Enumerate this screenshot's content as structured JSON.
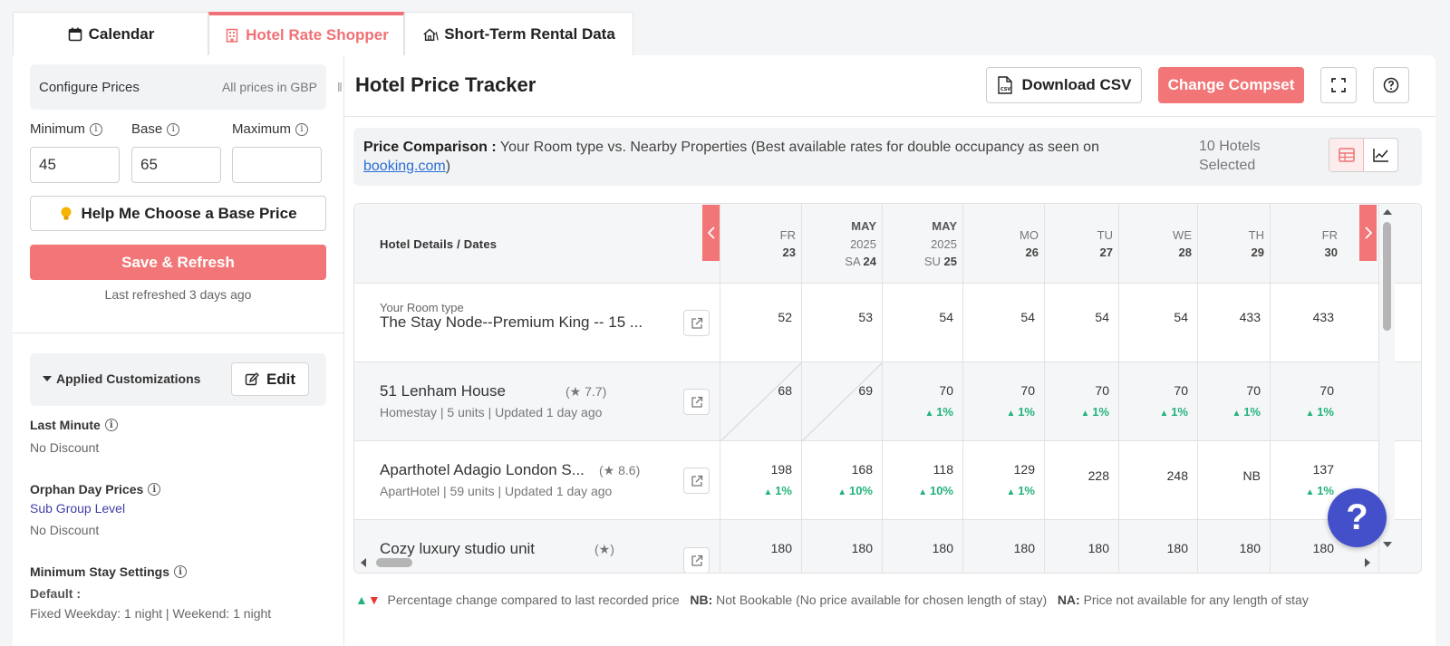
{
  "tabs": [
    {
      "label": "Calendar",
      "icon": "calendar-icon"
    },
    {
      "label": "Hotel Rate Shopper",
      "icon": "hotel-icon",
      "active": true
    },
    {
      "label": "Short-Term Rental Data",
      "icon": "house-icon"
    }
  ],
  "config": {
    "title": "Configure Prices",
    "note": "All prices in GBP",
    "minimum_label": "Minimum",
    "base_label": "Base",
    "maximum_label": "Maximum",
    "minimum_value": "45",
    "base_value": "65",
    "maximum_value": "",
    "help_button": "Help Me Choose a Base Price",
    "save_button": "Save & Refresh",
    "last_refreshed": "Last refreshed 3 days ago"
  },
  "customizations": {
    "title": "Applied Customizations",
    "edit_button": "Edit",
    "last_minute_label": "Last Minute",
    "last_minute_value": "No Discount",
    "orphan_label": "Orphan Day Prices",
    "orphan_link": "Sub Group Level",
    "orphan_value": "No Discount",
    "min_stay_label": "Minimum Stay Settings",
    "min_stay_default": "Default :",
    "min_stay_value": "Fixed Weekday: 1 night | Weekend: 1 night"
  },
  "tracker": {
    "title": "Hotel Price Tracker",
    "download_button": "Download CSV",
    "change_compset_button": "Change Compset",
    "comparison_label": "Price Comparison :",
    "comparison_text": " Your Room type vs. Nearby Properties (Best available rates for double occupancy as seen on ",
    "comparison_link": "booking.com",
    "comparison_end": ")",
    "hotels_selected": "10 Hotels Selected",
    "table_header": "Hotel Details / Dates"
  },
  "dates": [
    {
      "top": "",
      "mid": "",
      "day": "FR",
      "num": "23"
    },
    {
      "top": "MAY",
      "mid": "2025",
      "day": "SA",
      "num": "24"
    },
    {
      "top": "MAY",
      "mid": "2025",
      "day": "SU",
      "num": "25"
    },
    {
      "top": "",
      "mid": "",
      "day": "MO",
      "num": "26"
    },
    {
      "top": "",
      "mid": "",
      "day": "TU",
      "num": "27"
    },
    {
      "top": "",
      "mid": "",
      "day": "WE",
      "num": "28"
    },
    {
      "top": "",
      "mid": "",
      "day": "TH",
      "num": "29"
    },
    {
      "top": "",
      "mid": "",
      "day": "FR",
      "num": "30"
    }
  ],
  "rows": [
    {
      "small": "Your Room type",
      "name": "The Stay Node--Premium King -- 15 ...",
      "sub": "",
      "rating": "",
      "prices": [
        "52",
        "53",
        "54",
        "54",
        "54",
        "54",
        "433",
        "433"
      ],
      "changes": [
        "",
        "",
        "",
        "",
        "",
        "",
        "",
        ""
      ]
    },
    {
      "small": "",
      "name": "51 Lenham House",
      "sub": "Homestay | 5 units | Updated 1 day ago",
      "rating": "7.7",
      "prices": [
        "68",
        "69",
        "70",
        "70",
        "70",
        "70",
        "70",
        "70"
      ],
      "changes": [
        "",
        "",
        "1%",
        "1%",
        "1%",
        "1%",
        "1%",
        "1%"
      ]
    },
    {
      "small": "",
      "name": "Aparthotel Adagio London S...",
      "sub": "ApartHotel | 59 units | Updated 1 day ago",
      "rating": "8.6",
      "prices": [
        "198",
        "168",
        "118",
        "129",
        "228",
        "248",
        "NB",
        "137"
      ],
      "changes": [
        "1%",
        "10%",
        "10%",
        "1%",
        "",
        "",
        "",
        "1%"
      ]
    },
    {
      "small": "",
      "name": "Cozy luxury studio unit",
      "sub": "",
      "rating": "",
      "prices": [
        "180",
        "180",
        "180",
        "180",
        "180",
        "180",
        "180",
        "180"
      ],
      "changes": [
        "",
        "",
        "",
        "",
        "",
        "",
        "",
        ""
      ]
    }
  ],
  "legend": {
    "pct_text": "Percentage change compared to last recorded price",
    "nb_label": "NB:",
    "nb_text": "Not Bookable (No price available for chosen length of stay)",
    "na_label": "NA:",
    "na_text": "Price not available for any length of stay"
  },
  "colors": {
    "accent": "#f27677",
    "positive": "#22b37a",
    "help_fab": "#4450c9",
    "link": "#2a6fd6"
  }
}
